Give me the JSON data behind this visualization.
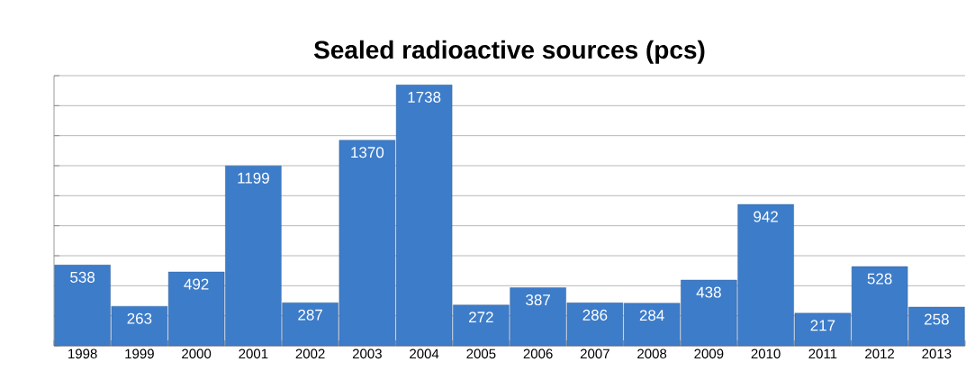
{
  "chart_data": {
    "type": "bar",
    "title": "Sealed radioactive sources (pcs)",
    "categories": [
      "1998",
      "1999",
      "2000",
      "2001",
      "2002",
      "2003",
      "2004",
      "2005",
      "2006",
      "2007",
      "2008",
      "2009",
      "2010",
      "2011",
      "2012",
      "2013"
    ],
    "values": [
      538,
      263,
      492,
      1199,
      287,
      1370,
      1738,
      272,
      387,
      286,
      284,
      438,
      942,
      217,
      528,
      258
    ],
    "color": "#3d7cc9",
    "ylim": [
      0,
      1800
    ],
    "yticks": [
      {
        "value": 0,
        "label": null
      },
      {
        "value": 200,
        "label": null
      },
      {
        "value": 400,
        "label": null
      },
      {
        "value": 600,
        "label": null
      },
      {
        "value": 800,
        "label": null
      },
      {
        "value": 1000,
        "label": null
      },
      {
        "value": 1200,
        "label": null
      },
      {
        "value": 1400,
        "label": null
      },
      {
        "value": 1600,
        "label": null
      },
      {
        "value": 1800,
        "label": null
      }
    ],
    "grid": "y",
    "data_labels": true,
    "tick_labels": "x"
  }
}
